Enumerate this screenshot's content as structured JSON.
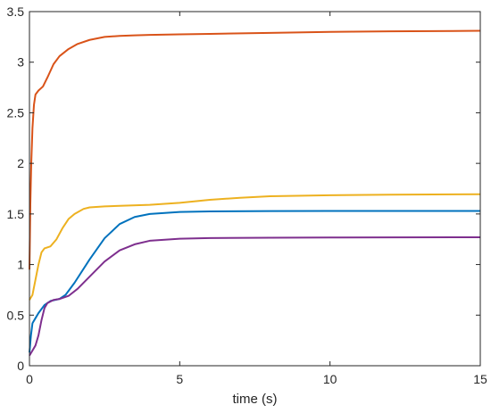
{
  "chart_data": {
    "type": "line",
    "title": "",
    "xlabel": "time (s)",
    "ylabel": "",
    "xlim": [
      0,
      15
    ],
    "ylim": [
      0,
      3.5
    ],
    "xticks": [
      0,
      5,
      10,
      15
    ],
    "xtick_labels": [
      "0",
      "5",
      "10",
      "15"
    ],
    "yticks": [
      0,
      0.5,
      1,
      1.5,
      2,
      2.5,
      3,
      3.5
    ],
    "ytick_labels": [
      "0",
      "0.5",
      "1",
      "1.5",
      "2",
      "2.5",
      "3",
      "3.5"
    ],
    "grid": false,
    "legend": "none",
    "series": [
      {
        "color": "#0072BD",
        "x": [
          0,
          0.05,
          0.1,
          0.2,
          0.3,
          0.5,
          0.7,
          1.0,
          1.2,
          1.5,
          2.0,
          2.5,
          3.0,
          3.5,
          4.0,
          5.0,
          6.0,
          8.0,
          10.0,
          12.0,
          15.0
        ],
        "y": [
          0.13,
          0.3,
          0.42,
          0.47,
          0.52,
          0.6,
          0.64,
          0.66,
          0.7,
          0.82,
          1.05,
          1.26,
          1.4,
          1.47,
          1.5,
          1.52,
          1.525,
          1.528,
          1.53,
          1.53,
          1.53
        ]
      },
      {
        "color": "#D95319",
        "x": [
          0,
          0.03,
          0.06,
          0.1,
          0.15,
          0.2,
          0.3,
          0.45,
          0.6,
          0.8,
          1.0,
          1.3,
          1.6,
          2.0,
          2.5,
          3.0,
          3.5,
          4.0,
          5.0,
          6.0,
          8.0,
          10.0,
          12.0,
          15.0
        ],
        "y": [
          0.95,
          1.6,
          2.0,
          2.35,
          2.58,
          2.68,
          2.72,
          2.76,
          2.85,
          2.98,
          3.06,
          3.13,
          3.18,
          3.22,
          3.25,
          3.26,
          3.265,
          3.27,
          3.275,
          3.28,
          3.29,
          3.3,
          3.305,
          3.31
        ]
      },
      {
        "color": "#EDB120",
        "x": [
          0,
          0.1,
          0.2,
          0.3,
          0.4,
          0.5,
          0.7,
          0.9,
          1.1,
          1.3,
          1.5,
          1.8,
          2.0,
          2.5,
          3.0,
          4.0,
          5.0,
          6.0,
          7.0,
          8.0,
          10.0,
          12.0,
          15.0
        ],
        "y": [
          0.65,
          0.7,
          0.85,
          1.0,
          1.12,
          1.16,
          1.18,
          1.25,
          1.36,
          1.45,
          1.5,
          1.55,
          1.565,
          1.575,
          1.58,
          1.59,
          1.61,
          1.64,
          1.66,
          1.675,
          1.685,
          1.69,
          1.695
        ]
      },
      {
        "color": "#7E2F8E",
        "x": [
          0,
          0.1,
          0.2,
          0.3,
          0.4,
          0.5,
          0.6,
          0.8,
          1.0,
          1.3,
          1.6,
          2.0,
          2.5,
          3.0,
          3.5,
          4.0,
          5.0,
          6.0,
          8.0,
          10.0,
          12.0,
          15.0
        ],
        "y": [
          0.1,
          0.15,
          0.2,
          0.3,
          0.45,
          0.57,
          0.62,
          0.65,
          0.66,
          0.69,
          0.76,
          0.88,
          1.03,
          1.14,
          1.2,
          1.235,
          1.255,
          1.262,
          1.265,
          1.267,
          1.268,
          1.27
        ]
      }
    ]
  }
}
